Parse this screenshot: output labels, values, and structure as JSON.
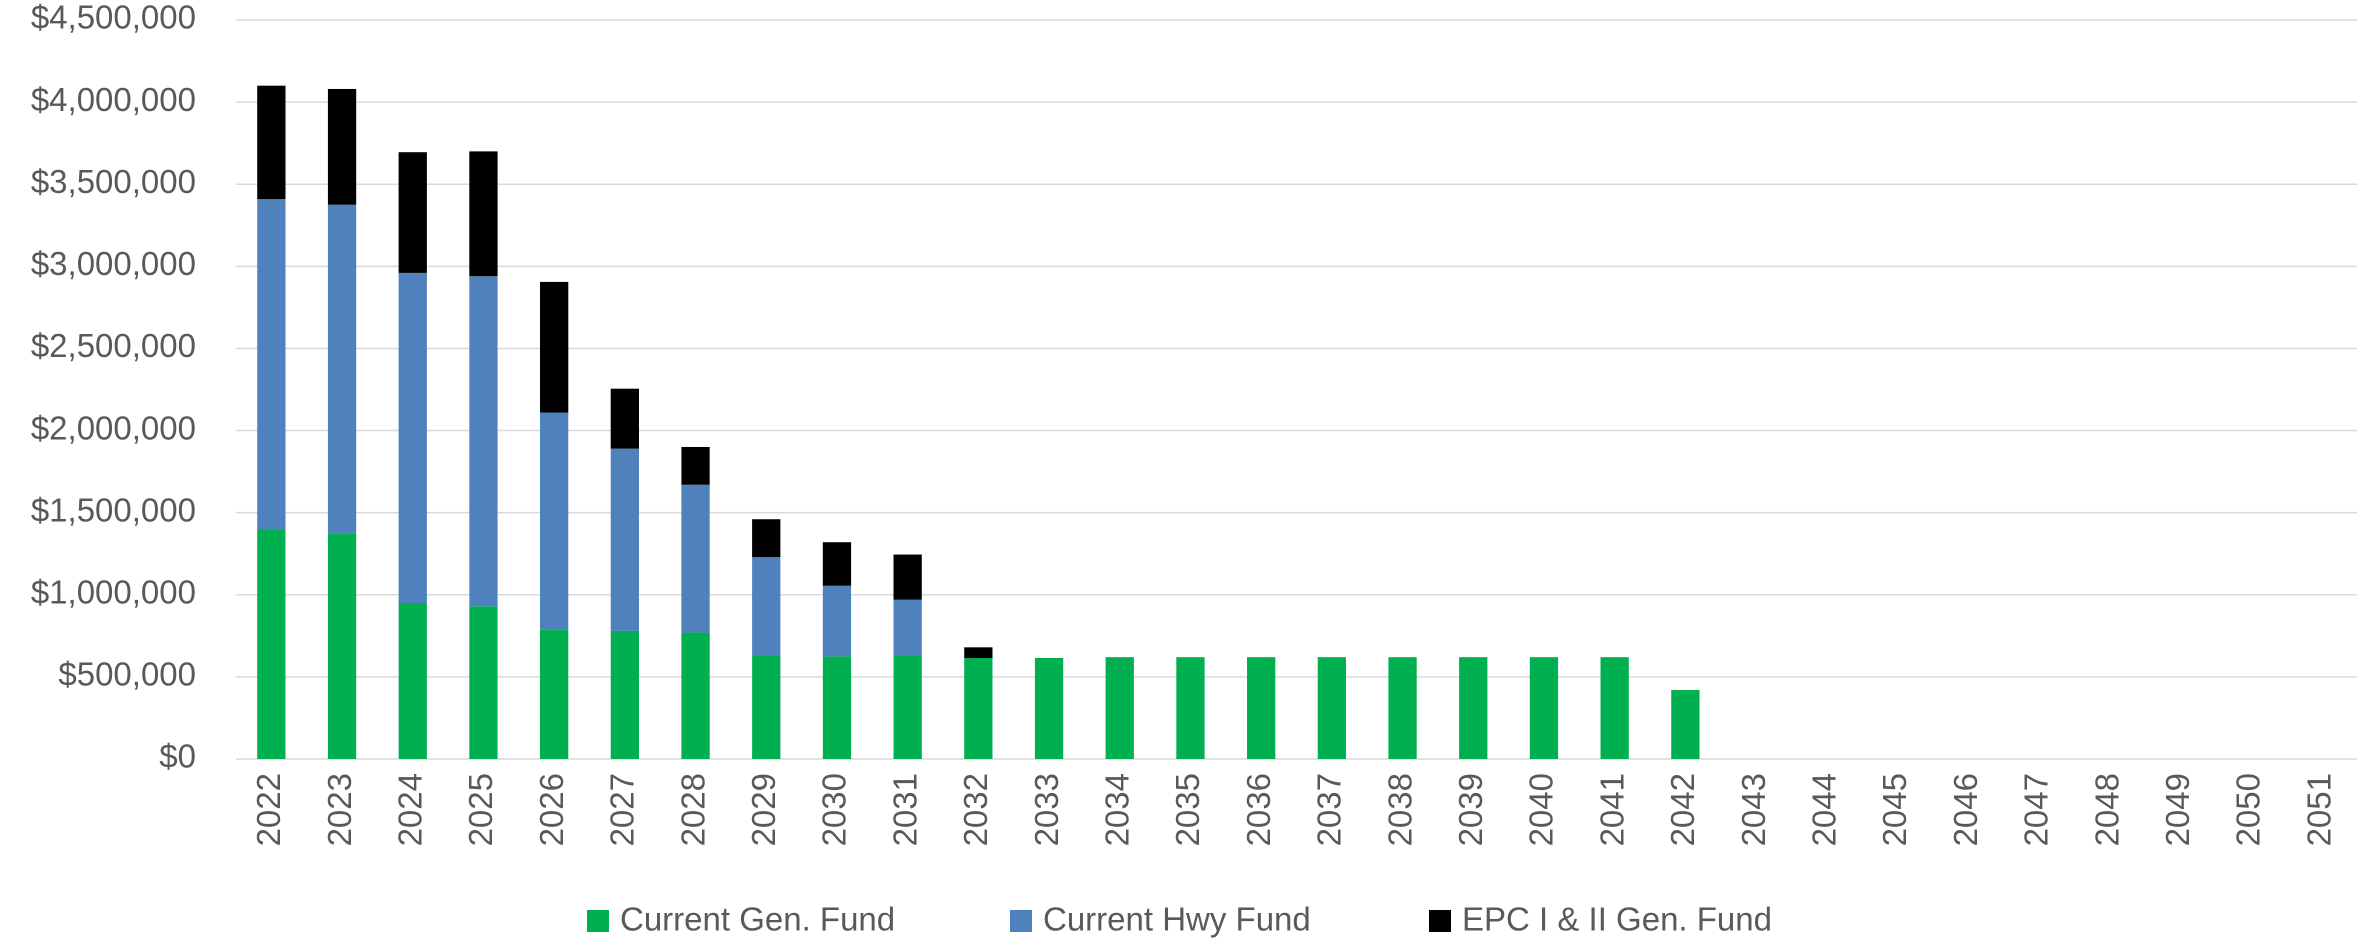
{
  "chart_data": {
    "type": "stacked_bar",
    "categories": [
      "2022",
      "2023",
      "2024",
      "2025",
      "2026",
      "2027",
      "2028",
      "2029",
      "2030",
      "2031",
      "2032",
      "2033",
      "2034",
      "2035",
      "2036",
      "2037",
      "2038",
      "2039",
      "2040",
      "2041",
      "2042",
      "2043",
      "2044",
      "2045",
      "2046",
      "2047",
      "2048",
      "2049",
      "2050",
      "2051"
    ],
    "series": [
      {
        "name": "Current Gen. Fund",
        "color": "#00b050",
        "values": [
          1400000,
          1375000,
          950000,
          930000,
          790000,
          780000,
          770000,
          630000,
          625000,
          630000,
          615000,
          615000,
          620000,
          620000,
          620000,
          620000,
          620000,
          620000,
          620000,
          620000,
          420000,
          0,
          0,
          0,
          0,
          0,
          0,
          0,
          0,
          0
        ]
      },
      {
        "name": "Current Hwy Fund",
        "color": "#4f81bd",
        "values": [
          2010000,
          2000000,
          2010000,
          2010000,
          1320000,
          1110000,
          900000,
          600000,
          430000,
          340000,
          0,
          0,
          0,
          0,
          0,
          0,
          0,
          0,
          0,
          0,
          0,
          0,
          0,
          0,
          0,
          0,
          0,
          0,
          0,
          0
        ]
      },
      {
        "name": "EPC I & II Gen. Fund",
        "color": "#000000",
        "values": [
          690000,
          705000,
          735000,
          760000,
          795000,
          365000,
          230000,
          230000,
          265000,
          275000,
          65000,
          0,
          0,
          0,
          0,
          0,
          0,
          0,
          0,
          0,
          0,
          0,
          0,
          0,
          0,
          0,
          0,
          0,
          0,
          0
        ]
      }
    ],
    "ylim": [
      0,
      4500000
    ],
    "yticks": [
      {
        "value": 0,
        "label": "$0"
      },
      {
        "value": 500000,
        "label": "$500,000"
      },
      {
        "value": 1000000,
        "label": "$1,000,000"
      },
      {
        "value": 1500000,
        "label": "$1,500,000"
      },
      {
        "value": 2000000,
        "label": "$2,000,000"
      },
      {
        "value": 2500000,
        "label": "$2,500,000"
      },
      {
        "value": 3000000,
        "label": "$3,000,000"
      },
      {
        "value": 3500000,
        "label": "$3,500,000"
      },
      {
        "value": 4000000,
        "label": "$4,000,000"
      },
      {
        "value": 4500000,
        "label": "$4,500,000"
      }
    ],
    "grid": true,
    "legend": "bottom"
  }
}
